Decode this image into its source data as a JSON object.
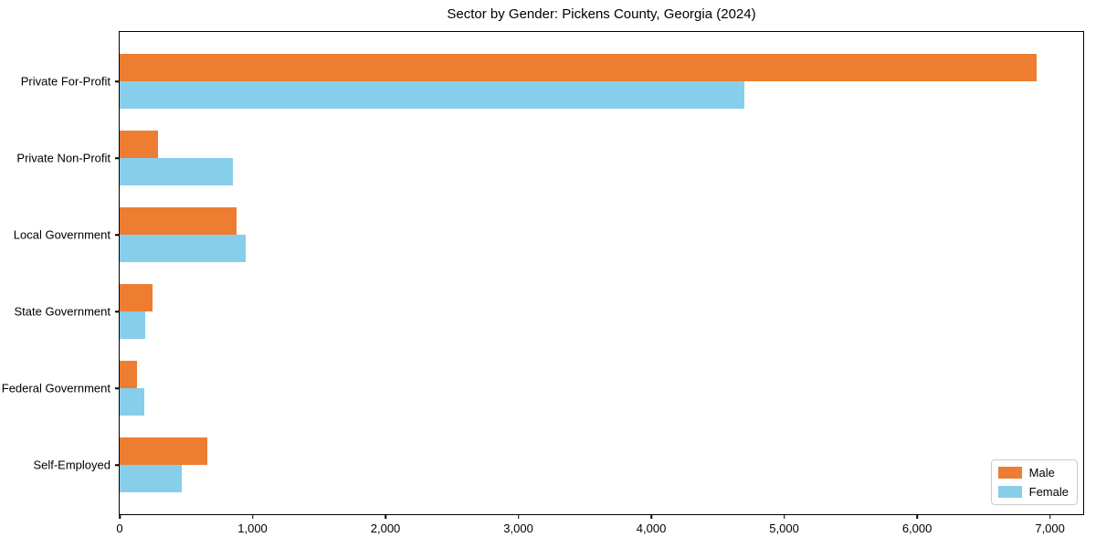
{
  "chart_data": {
    "type": "bar",
    "orientation": "horizontal",
    "title": "Sector by Gender: Pickens County, Georgia (2024)",
    "categories": [
      "Private For-Profit",
      "Private Non-Profit",
      "Local Government",
      "State Government",
      "Federal Government",
      "Self-Employed"
    ],
    "series": [
      {
        "name": "Male",
        "color": "#ED7D31",
        "values": [
          6900,
          290,
          880,
          250,
          130,
          660
        ]
      },
      {
        "name": "Female",
        "color": "#87CEEB",
        "values": [
          4700,
          850,
          950,
          190,
          185,
          470
        ]
      }
    ],
    "xlabel": "",
    "ylabel": "",
    "xlim": [
      0,
      7250
    ],
    "xticks": [
      0,
      1000,
      2000,
      3000,
      4000,
      5000,
      6000,
      7000
    ],
    "xticklabels": [
      "0",
      "1,000",
      "2,000",
      "3,000",
      "4,000",
      "5,000",
      "6,000",
      "7,000"
    ],
    "grid": false,
    "legend_position": "lower right",
    "background_color": "#ffffff",
    "spine_color": "#000000"
  }
}
